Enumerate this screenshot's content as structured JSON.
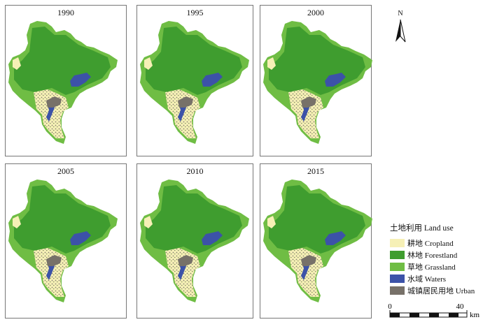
{
  "panels": [
    {
      "year": "1990"
    },
    {
      "year": "1995"
    },
    {
      "year": "2000"
    },
    {
      "year": "2005"
    },
    {
      "year": "2010"
    },
    {
      "year": "2015"
    }
  ],
  "north_arrow": {
    "label": "N"
  },
  "legend": {
    "title": "土地利用 Land use",
    "items": [
      {
        "label": "耕地 Cropland",
        "color": "#f6f0b6"
      },
      {
        "label": "林地 Forestland",
        "color": "#3f9d2f"
      },
      {
        "label": "草地 Grassland",
        "color": "#6fbd44"
      },
      {
        "label": "水域 Waters",
        "color": "#3c52a8"
      },
      {
        "label": "城镇居民用地 Urban",
        "color": "#777169"
      }
    ]
  },
  "scale_bar": {
    "start": "0",
    "end": "40",
    "unit": "km"
  }
}
